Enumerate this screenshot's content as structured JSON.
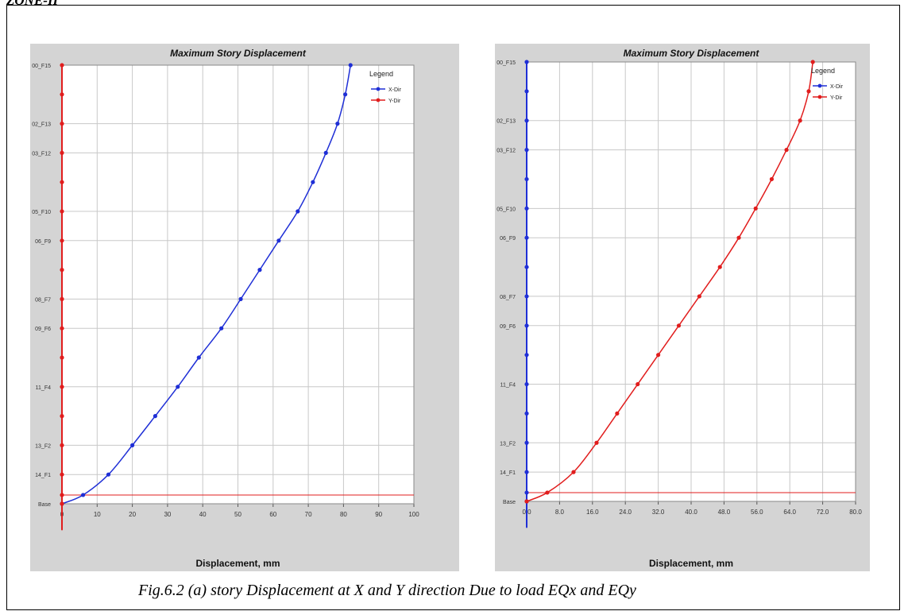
{
  "page": {
    "zone_title": "ZONE-II",
    "caption": "Fig.6.2 (a) story Displacement at X and Y direction Due to load EQx and EQy"
  },
  "colors": {
    "panel_bg": "#d4d4d4",
    "plot_bg": "#ffffff",
    "grid": "#c8c8c8",
    "x_dir": "#1f2fd6",
    "y_dir": "#e11d1d"
  },
  "chart_data": [
    {
      "type": "line",
      "title": "Maximum Story Displacement",
      "xlabel": "Displacement, mm",
      "ylabel": "",
      "xlim": [
        0,
        100
      ],
      "xticks": [
        "0",
        "10",
        "20",
        "30",
        "40",
        "50",
        "60",
        "70",
        "80",
        "90",
        "100"
      ],
      "yticks": [
        {
          "label": "00_F15",
          "story": 15
        },
        {
          "label": "02_F13",
          "story": 13
        },
        {
          "label": "03_F12",
          "story": 12
        },
        {
          "label": "05_F10",
          "story": 10
        },
        {
          "label": "06_F9",
          "story": 9
        },
        {
          "label": "08_F7",
          "story": 7
        },
        {
          "label": "09_F6",
          "story": 6
        },
        {
          "label": "11_F4",
          "story": 4
        },
        {
          "label": "13_F2",
          "story": 2
        },
        {
          "label": "14_F1",
          "story": 1
        },
        {
          "label": "Base",
          "story": 0
        }
      ],
      "grid": true,
      "legend": {
        "title": "Legend",
        "position": "top-right"
      },
      "series": [
        {
          "name": "X-Dir",
          "color_key": "x_dir",
          "story": [
            0,
            0.3,
            1,
            2,
            3,
            4,
            5,
            6,
            7,
            8,
            9,
            10,
            11,
            12,
            13,
            14,
            15
          ],
          "values": [
            0,
            6.0,
            13.2,
            20.0,
            26.5,
            32.9,
            38.9,
            45.3,
            50.8,
            56.2,
            61.6,
            67.0,
            71.3,
            75.0,
            78.3,
            80.5,
            82.0
          ]
        },
        {
          "name": "Y-Dir",
          "color_key": "y_dir",
          "story": [
            0,
            0.3,
            15
          ],
          "values": [
            0,
            0,
            0
          ]
        }
      ],
      "reference_line": {
        "story": 0.3,
        "color_key": "y_dir"
      }
    },
    {
      "type": "line",
      "title": "Maximum Story Displacement",
      "xlabel": "Displacement, mm",
      "ylabel": "",
      "xlim": [
        0,
        80
      ],
      "xticks": [
        "0.0",
        "8.0",
        "16.0",
        "24.0",
        "32.0",
        "40.0",
        "48.0",
        "56.0",
        "64.0",
        "72.0",
        "80.0"
      ],
      "yticks": [
        {
          "label": "00_F15",
          "story": 15
        },
        {
          "label": "02_F13",
          "story": 13
        },
        {
          "label": "03_F12",
          "story": 12
        },
        {
          "label": "05_F10",
          "story": 10
        },
        {
          "label": "06_F9",
          "story": 9
        },
        {
          "label": "08_F7",
          "story": 7
        },
        {
          "label": "09_F6",
          "story": 6
        },
        {
          "label": "11_F4",
          "story": 4
        },
        {
          "label": "13_F2",
          "story": 2
        },
        {
          "label": "14_F1",
          "story": 1
        },
        {
          "label": "Base",
          "story": 0
        }
      ],
      "grid": true,
      "legend": {
        "title": "Legend",
        "position": "top-right"
      },
      "series": [
        {
          "name": "X-Dir",
          "color_key": "x_dir",
          "story": [
            0,
            0.3,
            15
          ],
          "values": [
            0,
            0,
            0
          ]
        },
        {
          "name": "Y-Dir",
          "color_key": "y_dir",
          "story": [
            0,
            0.3,
            1,
            2,
            3,
            4,
            5,
            6,
            7,
            8,
            9,
            10,
            11,
            12,
            13,
            14,
            15
          ],
          "values": [
            0,
            5.0,
            11.4,
            17.0,
            22.0,
            27.0,
            32.0,
            37.0,
            42.0,
            47.0,
            51.6,
            55.7,
            59.6,
            63.2,
            66.5,
            68.6,
            69.6
          ]
        }
      ],
      "reference_line": {
        "story": 0.3,
        "color_key": "y_dir"
      }
    }
  ]
}
